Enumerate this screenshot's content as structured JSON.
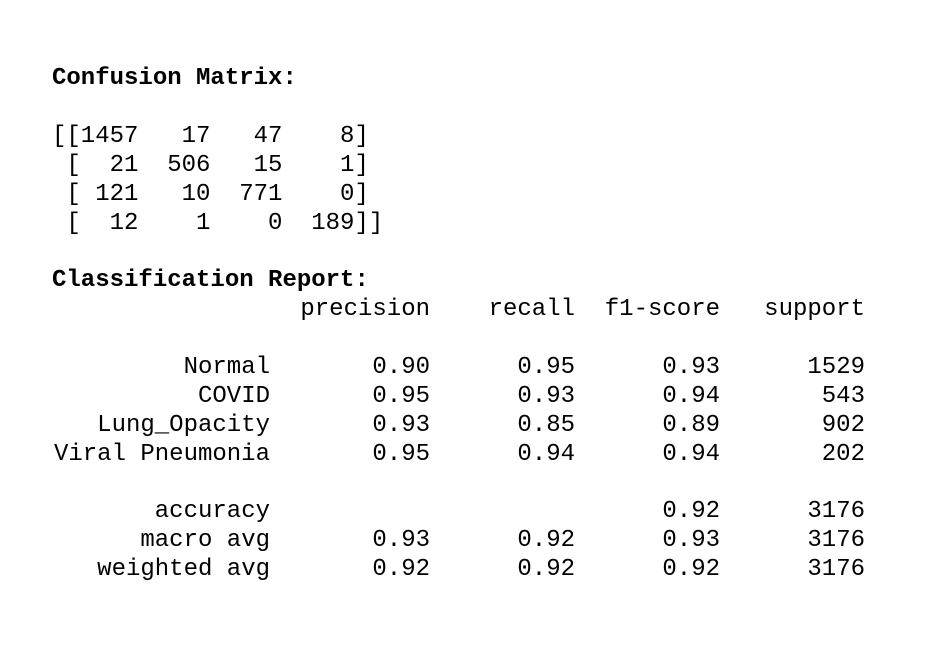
{
  "confusion_matrix": {
    "title": "Confusion Matrix:",
    "rows": [
      "[[1457   17   47    8]",
      " [  21  506   15    1]",
      " [ 121   10  771    0]",
      " [  12    1    0  189]]"
    ]
  },
  "classification_report": {
    "title": "Classification Report:",
    "headers": [
      "precision",
      "recall",
      "f1-score",
      "support"
    ],
    "classes": [
      {
        "label": "Normal",
        "precision": "0.90",
        "recall": "0.95",
        "f1": "0.93",
        "support": "1529"
      },
      {
        "label": "COVID",
        "precision": "0.95",
        "recall": "0.93",
        "f1": "0.94",
        "support": "543"
      },
      {
        "label": "Lung_Opacity",
        "precision": "0.93",
        "recall": "0.85",
        "f1": "0.89",
        "support": "902"
      },
      {
        "label": "Viral Pneumonia",
        "precision": "0.95",
        "recall": "0.94",
        "f1": "0.94",
        "support": "202"
      }
    ],
    "summary": [
      {
        "label": "accuracy",
        "precision": "",
        "recall": "",
        "f1": "0.92",
        "support": "3176"
      },
      {
        "label": "macro avg",
        "precision": "0.93",
        "recall": "0.92",
        "f1": "0.93",
        "support": "3176"
      },
      {
        "label": "weighted avg",
        "precision": "0.92",
        "recall": "0.92",
        "f1": "0.92",
        "support": "3176"
      }
    ]
  }
}
